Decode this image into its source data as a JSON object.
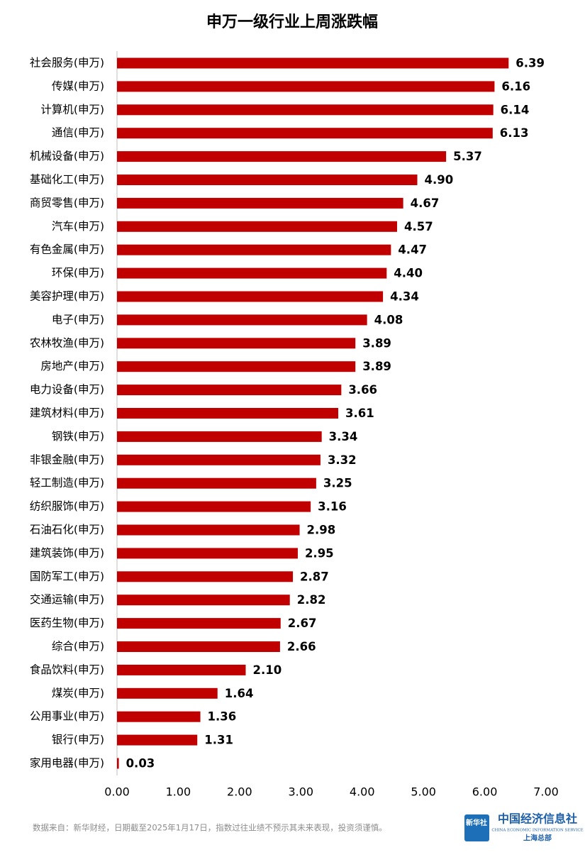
{
  "chart_data": {
    "type": "barh",
    "title": "申万一级行业上周涨跌幅",
    "categories": [
      "社会服务(申万)",
      "传媒(申万)",
      "计算机(申万)",
      "通信(申万)",
      "机械设备(申万)",
      "基础化工(申万)",
      "商贸零售(申万)",
      "汽车(申万)",
      "有色金属(申万)",
      "环保(申万)",
      "美容护理(申万)",
      "电子(申万)",
      "农林牧渔(申万)",
      "房地产(申万)",
      "电力设备(申万)",
      "建筑材料(申万)",
      "钢铁(申万)",
      "非银金融(申万)",
      "轻工制造(申万)",
      "纺织服饰(申万)",
      "石油石化(申万)",
      "建筑装饰(申万)",
      "国防军工(申万)",
      "交通运输(申万)",
      "医药生物(申万)",
      "综合(申万)",
      "食品饮料(申万)",
      "煤炭(申万)",
      "公用事业(申万)",
      "银行(申万)",
      "家用电器(申万)"
    ],
    "values": [
      6.39,
      6.16,
      6.14,
      6.13,
      5.37,
      4.9,
      4.67,
      4.57,
      4.47,
      4.4,
      4.34,
      4.08,
      3.89,
      3.89,
      3.66,
      3.61,
      3.34,
      3.32,
      3.25,
      3.16,
      2.98,
      2.95,
      2.87,
      2.82,
      2.67,
      2.66,
      2.1,
      1.64,
      1.36,
      1.31,
      0.03
    ],
    "value_labels": [
      "6.39",
      "6.16",
      "6.14",
      "6.13",
      "5.37",
      "4.90",
      "4.67",
      "4.57",
      "4.47",
      "4.40",
      "4.34",
      "4.08",
      "3.89",
      "3.89",
      "3.66",
      "3.61",
      "3.34",
      "3.32",
      "3.25",
      "3.16",
      "2.98",
      "2.95",
      "2.87",
      "2.82",
      "2.67",
      "2.66",
      "2.10",
      "1.64",
      "1.36",
      "1.31",
      "0.03"
    ],
    "color": "#c00000",
    "xlim": [
      0,
      7
    ],
    "xticks": [
      {
        "value": 0,
        "label": "0.00"
      },
      {
        "value": 1,
        "label": "1.00"
      },
      {
        "value": 2,
        "label": "2.00"
      },
      {
        "value": 3,
        "label": "3.00"
      },
      {
        "value": 4,
        "label": "4.00"
      },
      {
        "value": 5,
        "label": "5.00"
      },
      {
        "value": 6,
        "label": "6.00"
      },
      {
        "value": 7,
        "label": "7.00"
      }
    ],
    "grid": false
  },
  "footer": {
    "source": "数据来自：新华财经，日期截至2025年1月17日，指数过往业绩不预示其未来表现，投资须谨慎。",
    "logo_badge": "新华社",
    "logo_name": "中国经济信息社",
    "logo_english": "CHINA ECONOMIC INFORMATION SERVICE",
    "logo_branch": "上海总部"
  }
}
